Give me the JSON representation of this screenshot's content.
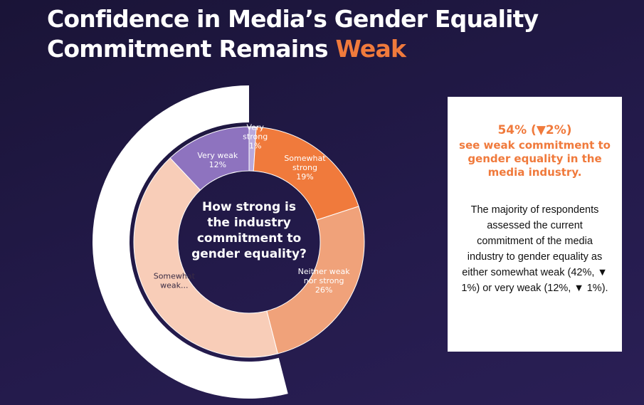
{
  "title": {
    "line1": "Confidence in Media’s Gender Equality",
    "line2_lead": "Commitment Remains ",
    "line2_accent": "Weak"
  },
  "colors": {
    "background": "#1f1740",
    "accent": "#f07a3c",
    "outer_ring": "#ffffff",
    "very_strong": "#b9a9dd",
    "somewhat_strong": "#f07a3c",
    "neither": "#f0a27a",
    "somewhat_weak": "#f8cdb8",
    "very_weak": "#8e73bf"
  },
  "chart_data": {
    "type": "donut",
    "center_text": [
      "How strong is",
      "the industry",
      "commitment to",
      "gender equality?"
    ],
    "slices": [
      {
        "label": [
          "Very",
          "strong",
          "1%"
        ],
        "value": 1,
        "color": "#b9a9dd"
      },
      {
        "label": [
          "Somewhat",
          "strong",
          "19%"
        ],
        "value": 19,
        "color": "#f07a3c"
      },
      {
        "label": [
          "Neither weak",
          "nor strong",
          "26%"
        ],
        "value": 26,
        "color": "#f0a27a"
      },
      {
        "label": [
          "Somewhat",
          "weak..."
        ],
        "value": 42,
        "color": "#f8cdb8"
      },
      {
        "label": [
          "Very weak",
          "12%"
        ],
        "value": 12,
        "color": "#8e73bf"
      }
    ],
    "outer_highlight": {
      "covers": "weak (somewhat weak + very weak)",
      "value": 54
    }
  },
  "callout": {
    "headline_big": "54% (▼2%)",
    "headline_rest": "see weak commitment to gender equality in the media industry.",
    "body": "The majority of respondents assessed the current commitment of the media industry to gender equality as either somewhat weak (42%, ▼ 1%) or very weak (12%, ▼ 1%)."
  }
}
